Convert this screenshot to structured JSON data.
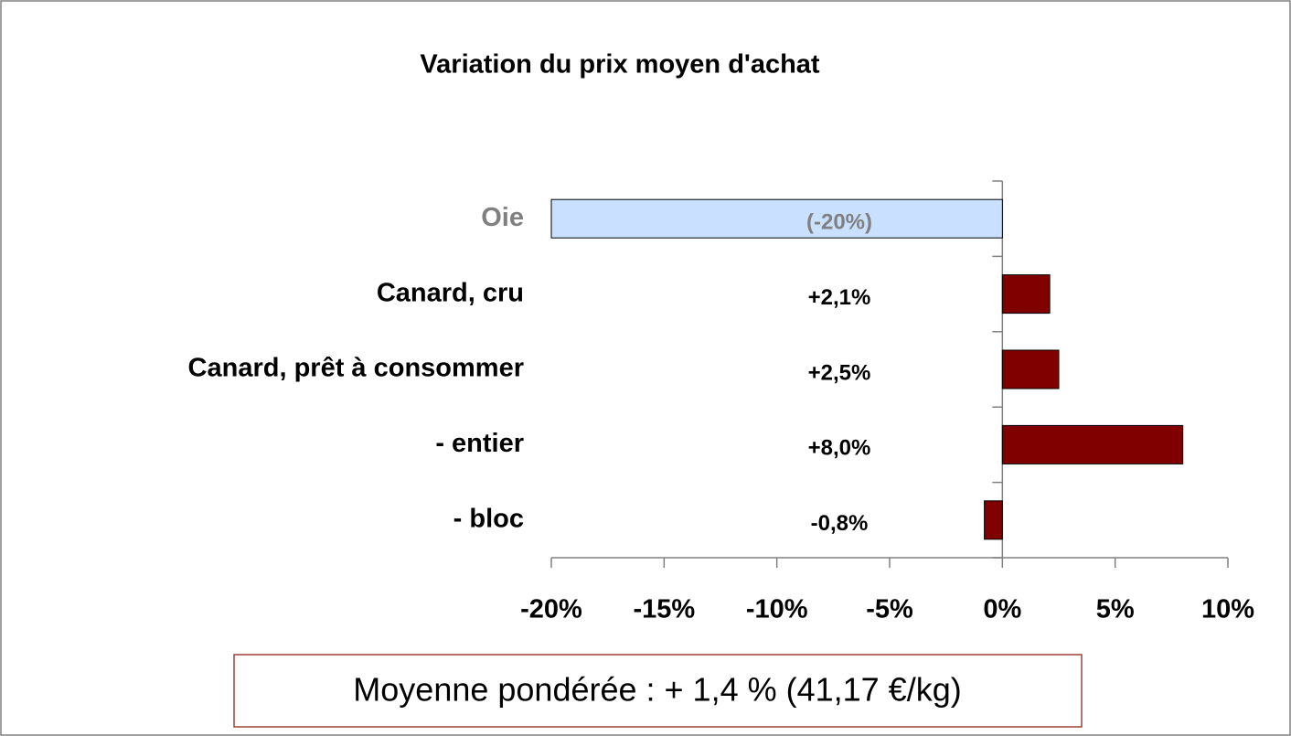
{
  "chart_data": {
    "type": "barh",
    "title": "Variation du prix moyen d'achat",
    "categories": [
      "Oie",
      "Canard, cru",
      "Canard, prêt à consommer",
      "- entier",
      "- bloc"
    ],
    "values": [
      -20,
      2.1,
      2.5,
      8.0,
      -0.8
    ],
    "value_labels": [
      "(-20%)",
      "+2,1%",
      "+2,5%",
      "+8,0%",
      "-0,8%"
    ],
    "colors": [
      "#c9e1ff",
      "#800000",
      "#800000",
      "#800000",
      "#800000"
    ],
    "label_colors": [
      "#808080",
      "#000000",
      "#000000",
      "#000000",
      "#000000"
    ],
    "xlim": [
      -20,
      10
    ],
    "xticks": [
      {
        "value": -20,
        "label": "-20%"
      },
      {
        "value": -15,
        "label": "-15%"
      },
      {
        "value": -10,
        "label": "-10%"
      },
      {
        "value": -5,
        "label": "-5%"
      },
      {
        "value": 0,
        "label": "0%"
      },
      {
        "value": 5,
        "label": "5%"
      },
      {
        "value": 10,
        "label": "10%"
      }
    ],
    "annotation": "Moyenne pondérée : + 1,4 % (41,17 €/kg)"
  }
}
